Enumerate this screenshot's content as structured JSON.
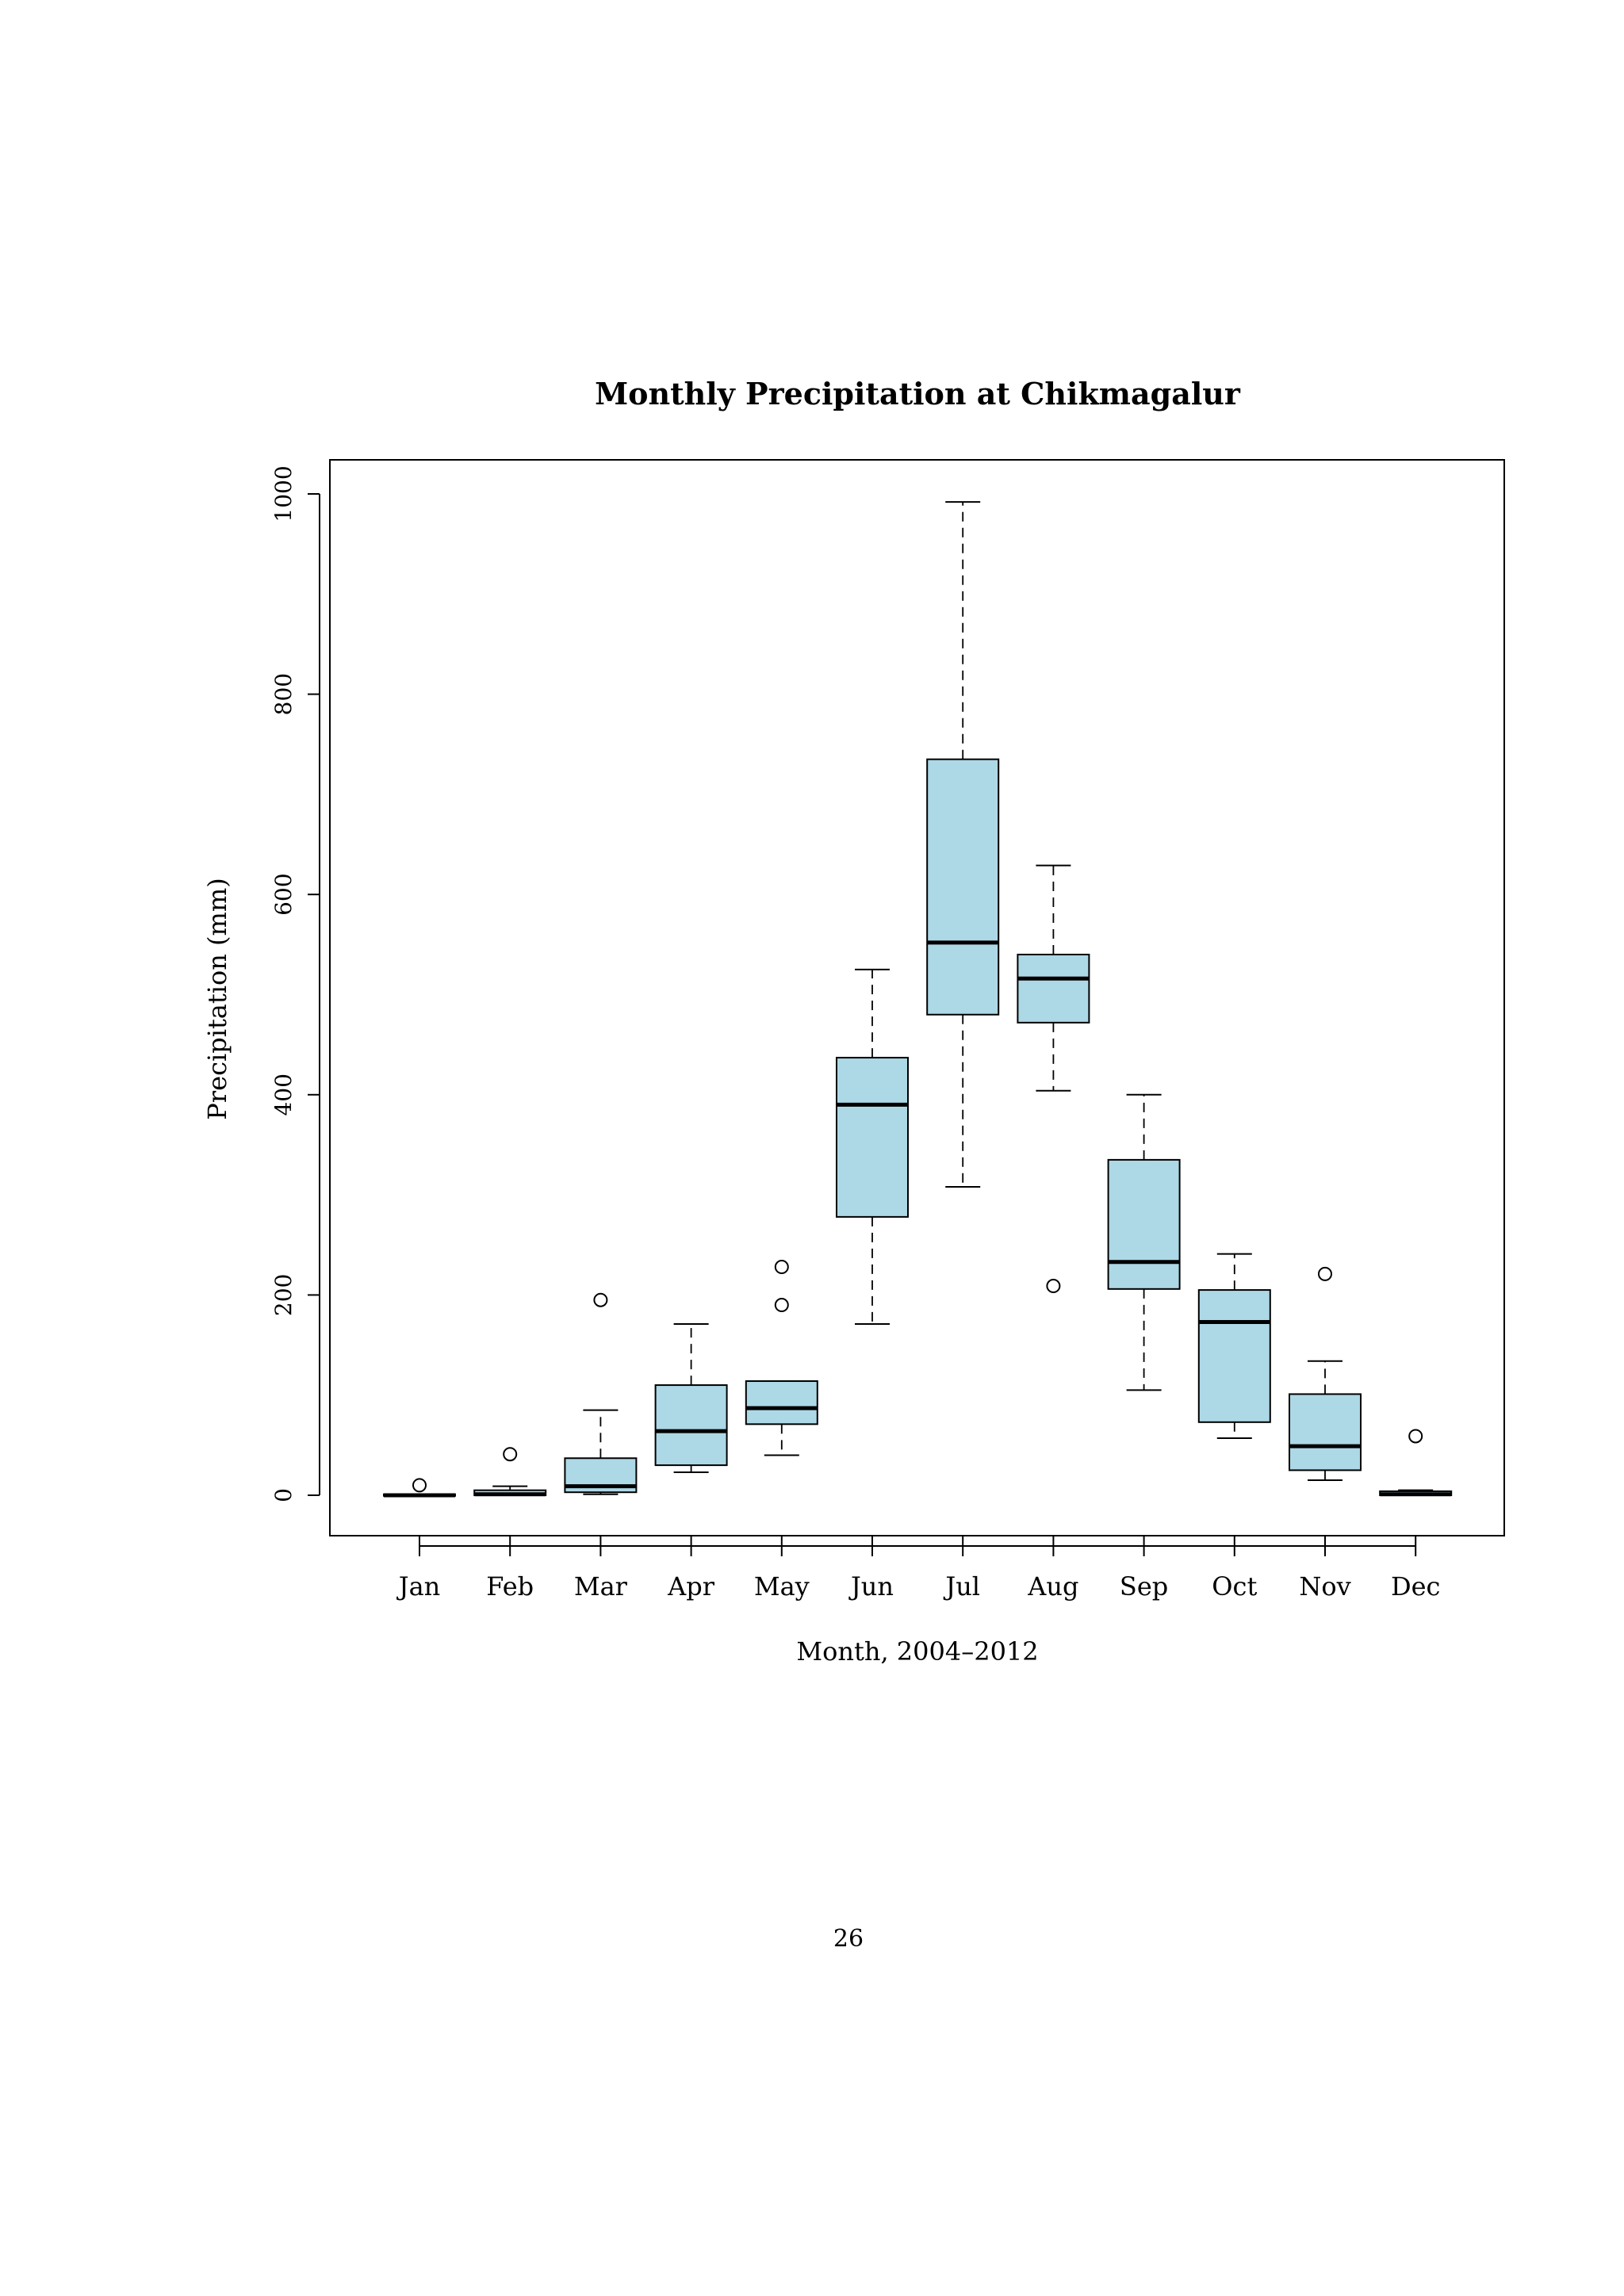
{
  "page": {
    "page_number": "26"
  },
  "chart_data": {
    "type": "boxplot",
    "title": "Monthly Precipitation at Chikmagalur",
    "xlabel": "Month, 2004–2012",
    "ylabel": "Precipitation (mm)",
    "ylim": [
      -40,
      1035
    ],
    "yticks": [
      0,
      200,
      400,
      600,
      800,
      1000
    ],
    "ytick_labels": [
      "0",
      "200",
      "400",
      "600",
      "800",
      "1000"
    ],
    "grid": false,
    "legend": "none",
    "colors": {
      "box_fill": "#add8e6",
      "stroke": "#000000"
    },
    "categories": [
      "Jan",
      "Feb",
      "Mar",
      "Apr",
      "May",
      "Jun",
      "Jul",
      "Aug",
      "Sep",
      "Oct",
      "Nov",
      "Dec"
    ],
    "boxes": [
      {
        "label": "Jan",
        "whisker_low": 0,
        "q1": 0,
        "median": 0,
        "q3": 1,
        "whisker_high": 1,
        "outliers": [
          10
        ]
      },
      {
        "label": "Feb",
        "whisker_low": 0,
        "q1": 0,
        "median": 1,
        "q3": 5,
        "whisker_high": 9,
        "outliers": [
          41
        ]
      },
      {
        "label": "Mar",
        "whisker_low": 1,
        "q1": 3,
        "median": 9,
        "q3": 37,
        "whisker_high": 85,
        "outliers": [
          195
        ]
      },
      {
        "label": "Apr",
        "whisker_low": 23,
        "q1": 30,
        "median": 64,
        "q3": 110,
        "whisker_high": 171,
        "outliers": []
      },
      {
        "label": "May",
        "whisker_low": 40,
        "q1": 71,
        "median": 87,
        "q3": 114,
        "whisker_high": 114,
        "outliers": [
          190,
          228
        ]
      },
      {
        "label": "Jun",
        "whisker_low": 171,
        "q1": 278,
        "median": 390,
        "q3": 437,
        "whisker_high": 525,
        "outliers": []
      },
      {
        "label": "Jul",
        "whisker_low": 308,
        "q1": 480,
        "median": 552,
        "q3": 735,
        "whisker_high": 992,
        "outliers": []
      },
      {
        "label": "Aug",
        "whisker_low": 404,
        "q1": 472,
        "median": 516,
        "q3": 540,
        "whisker_high": 629,
        "outliers": [
          209
        ]
      },
      {
        "label": "Sep",
        "whisker_low": 105,
        "q1": 206,
        "median": 233,
        "q3": 335,
        "whisker_high": 400,
        "outliers": []
      },
      {
        "label": "Oct",
        "whisker_low": 57,
        "q1": 73,
        "median": 173,
        "q3": 205,
        "whisker_high": 241,
        "outliers": []
      },
      {
        "label": "Nov",
        "whisker_low": 15,
        "q1": 25,
        "median": 49,
        "q3": 101,
        "whisker_high": 134,
        "outliers": [
          221
        ]
      },
      {
        "label": "Dec",
        "whisker_low": 0,
        "q1": 0,
        "median": 1,
        "q3": 4,
        "whisker_high": 5,
        "outliers": [
          59
        ]
      }
    ]
  }
}
